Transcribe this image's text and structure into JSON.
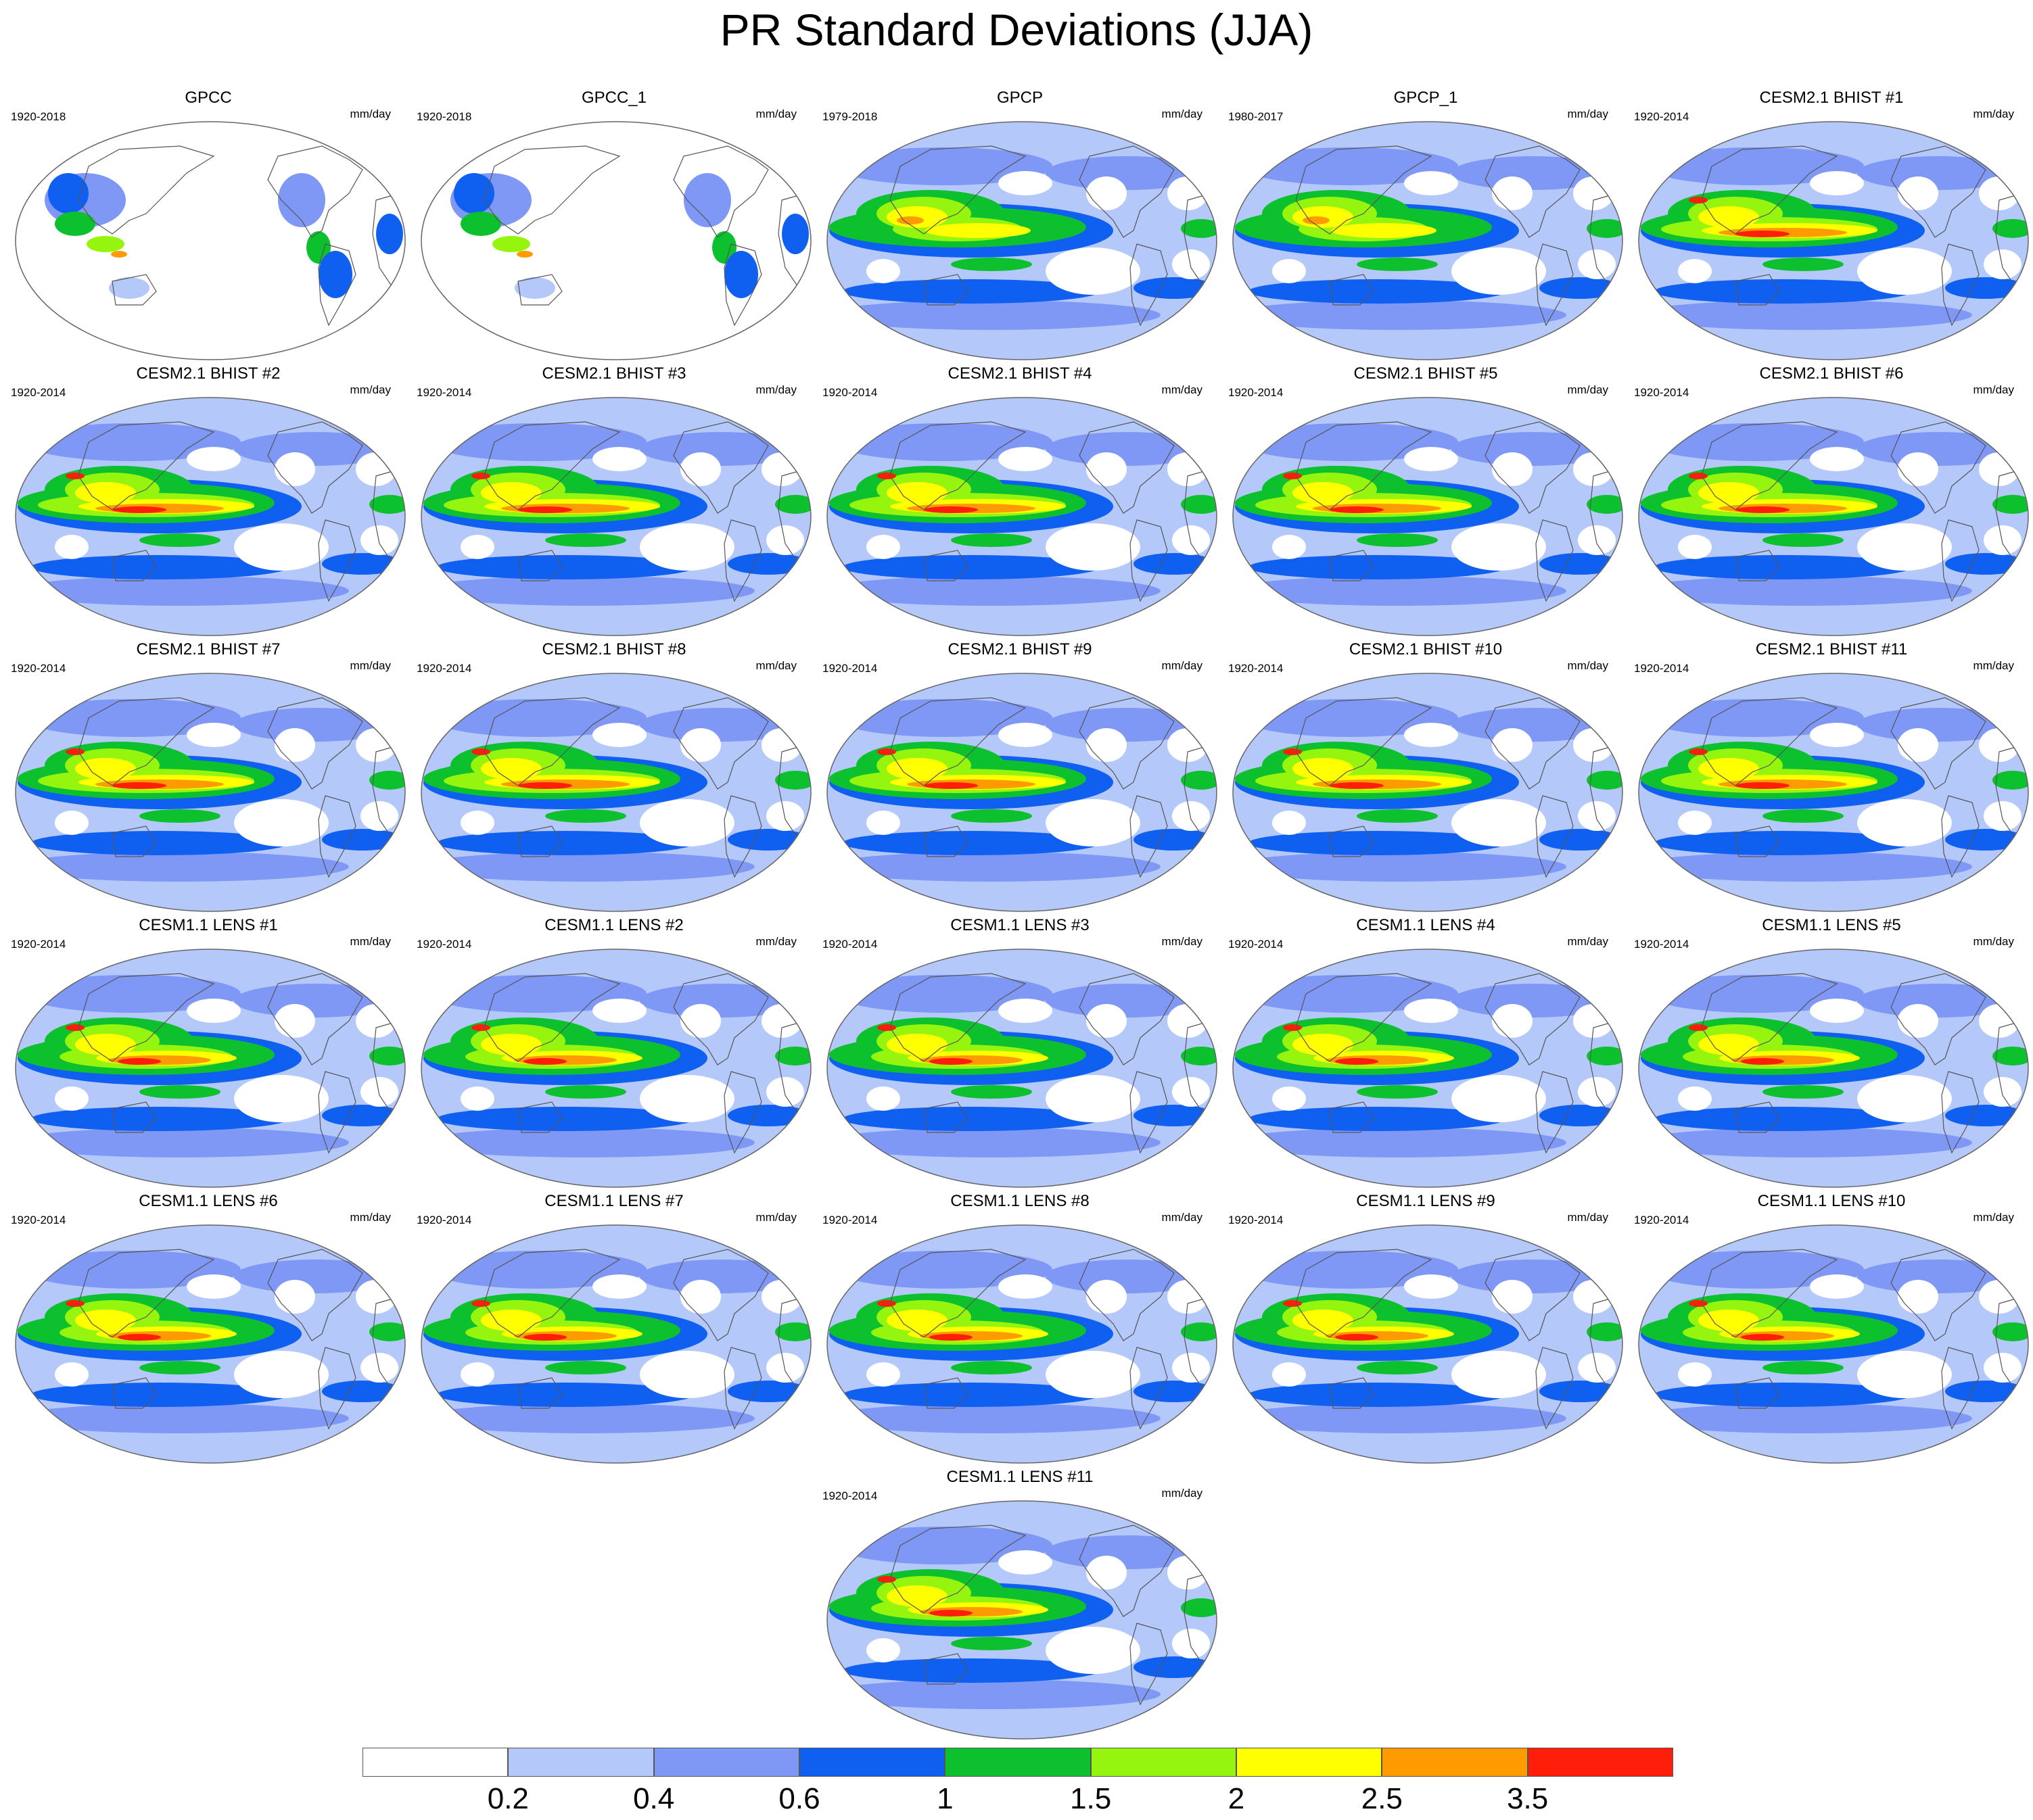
{
  "figure": {
    "title": "PR Standard Deviations (JJA)"
  },
  "panels": [
    {
      "title": "GPCC",
      "period": "1920-2018",
      "units": "mm/day",
      "coverage": "land"
    },
    {
      "title": "GPCC_1",
      "period": "1920-2018",
      "units": "mm/day",
      "coverage": "land"
    },
    {
      "title": "GPCP",
      "period": "1979-2018",
      "units": "mm/day",
      "coverage": "global",
      "style": "obs"
    },
    {
      "title": "GPCP_1",
      "period": "1980-2017",
      "units": "mm/day",
      "coverage": "global",
      "style": "obs"
    },
    {
      "title": "CESM2.1 BHIST #1",
      "period": "1920-2014",
      "units": "mm/day",
      "coverage": "global",
      "style": "cesm2"
    },
    {
      "title": "CESM2.1 BHIST #2",
      "period": "1920-2014",
      "units": "mm/day",
      "coverage": "global",
      "style": "cesm2"
    },
    {
      "title": "CESM2.1 BHIST #3",
      "period": "1920-2014",
      "units": "mm/day",
      "coverage": "global",
      "style": "cesm2"
    },
    {
      "title": "CESM2.1 BHIST #4",
      "period": "1920-2014",
      "units": "mm/day",
      "coverage": "global",
      "style": "cesm2"
    },
    {
      "title": "CESM2.1 BHIST #5",
      "period": "1920-2014",
      "units": "mm/day",
      "coverage": "global",
      "style": "cesm2"
    },
    {
      "title": "CESM2.1 BHIST #6",
      "period": "1920-2014",
      "units": "mm/day",
      "coverage": "global",
      "style": "cesm2"
    },
    {
      "title": "CESM2.1 BHIST #7",
      "period": "1920-2014",
      "units": "mm/day",
      "coverage": "global",
      "style": "cesm2"
    },
    {
      "title": "CESM2.1 BHIST #8",
      "period": "1920-2014",
      "units": "mm/day",
      "coverage": "global",
      "style": "cesm2"
    },
    {
      "title": "CESM2.1 BHIST #9",
      "period": "1920-2014",
      "units": "mm/day",
      "coverage": "global",
      "style": "cesm2"
    },
    {
      "title": "CESM2.1 BHIST #10",
      "period": "1920-2014",
      "units": "mm/day",
      "coverage": "global",
      "style": "cesm2"
    },
    {
      "title": "CESM2.1 BHIST #11",
      "period": "1920-2014",
      "units": "mm/day",
      "coverage": "global",
      "style": "cesm2"
    },
    {
      "title": "CESM1.1 LENS #1",
      "period": "1920-2014",
      "units": "mm/day",
      "coverage": "global",
      "style": "cesm1"
    },
    {
      "title": "CESM1.1 LENS #2",
      "period": "1920-2014",
      "units": "mm/day",
      "coverage": "global",
      "style": "cesm1"
    },
    {
      "title": "CESM1.1 LENS #3",
      "period": "1920-2014",
      "units": "mm/day",
      "coverage": "global",
      "style": "cesm1"
    },
    {
      "title": "CESM1.1 LENS #4",
      "period": "1920-2014",
      "units": "mm/day",
      "coverage": "global",
      "style": "cesm1"
    },
    {
      "title": "CESM1.1 LENS #5",
      "period": "1920-2014",
      "units": "mm/day",
      "coverage": "global",
      "style": "cesm1"
    },
    {
      "title": "CESM1.1 LENS #6",
      "period": "1920-2014",
      "units": "mm/day",
      "coverage": "global",
      "style": "cesm1"
    },
    {
      "title": "CESM1.1 LENS #7",
      "period": "1920-2014",
      "units": "mm/day",
      "coverage": "global",
      "style": "cesm1"
    },
    {
      "title": "CESM1.1 LENS #8",
      "period": "1920-2014",
      "units": "mm/day",
      "coverage": "global",
      "style": "cesm1"
    },
    {
      "title": "CESM1.1 LENS #9",
      "period": "1920-2014",
      "units": "mm/day",
      "coverage": "global",
      "style": "cesm1"
    },
    {
      "title": "CESM1.1 LENS #10",
      "period": "1920-2014",
      "units": "mm/day",
      "coverage": "global",
      "style": "cesm1"
    },
    {
      "title": "CESM1.1 LENS #11",
      "period": "1920-2014",
      "units": "mm/day",
      "coverage": "global",
      "style": "cesm1"
    }
  ],
  "colorbar": {
    "colors": [
      "#ffffff",
      "#b4c8fa",
      "#7f97f5",
      "#0f5ff0",
      "#0cc12d",
      "#96f50f",
      "#ffff00",
      "#ff9b00",
      "#ff1e0a"
    ],
    "tick_labels": [
      "0.2",
      "0.4",
      "0.6",
      "1",
      "1.5",
      "2",
      "2.5",
      "3.5"
    ]
  }
}
